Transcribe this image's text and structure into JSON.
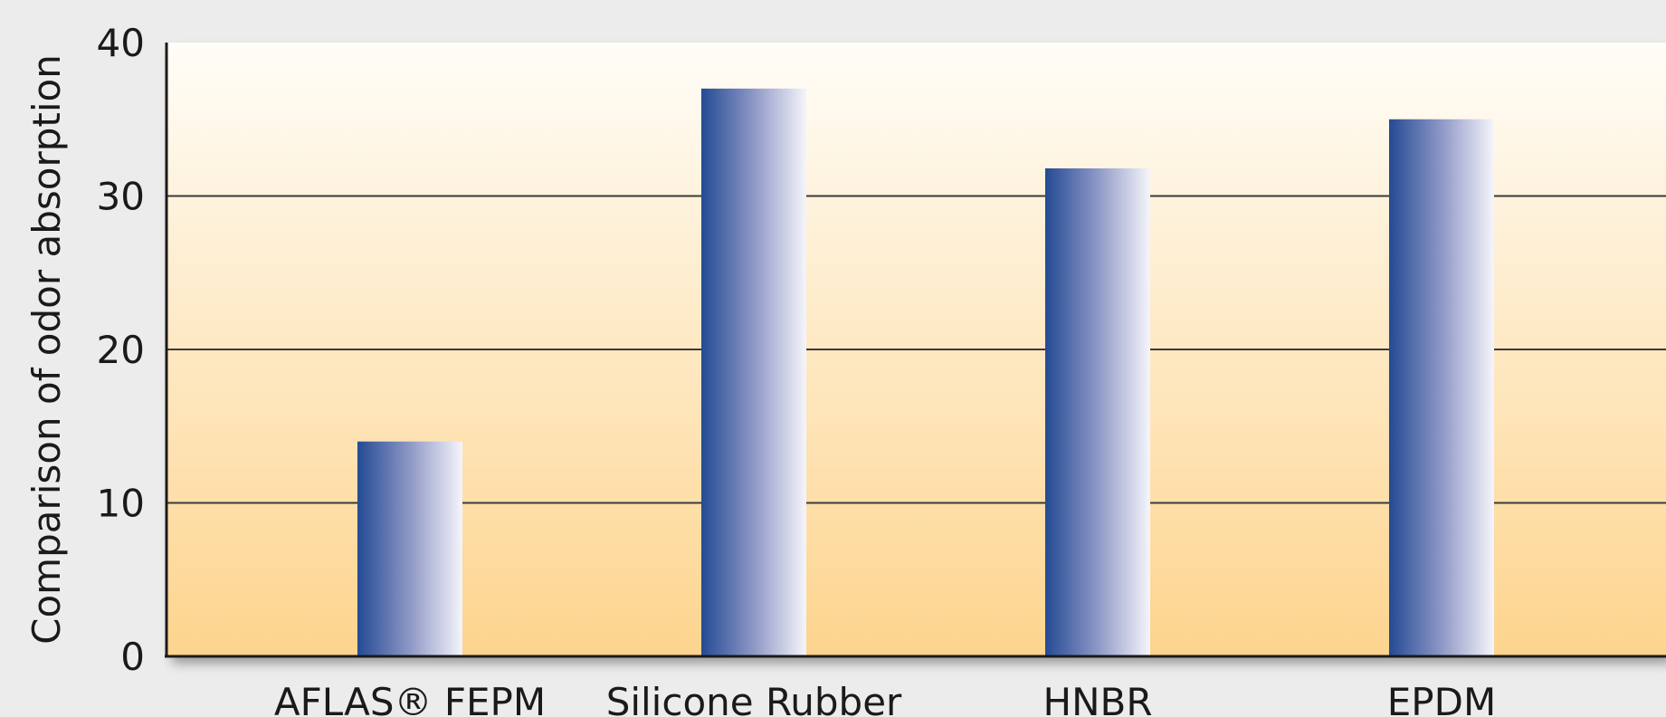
{
  "chart_data": {
    "type": "bar",
    "title": "",
    "xlabel": "",
    "ylabel": "Comparison of odor absorption",
    "categories": [
      "AFLAS® FEPM",
      "Silicone Rubber",
      "HNBR",
      "EPDM"
    ],
    "values": [
      14,
      37,
      31.8,
      35
    ],
    "ylim": [
      0,
      40
    ],
    "yticks": [
      0,
      10,
      20,
      30,
      40
    ],
    "grid": true,
    "legend": "none",
    "colors": {
      "plot_top": "#fffdf8",
      "plot_bottom": "#fdd48e",
      "bar_dark": "#244a94",
      "bar_mid": "#8e98c6",
      "bar_light": "#f5f5fb",
      "axis": "#1a1a1a",
      "grid": "#3a3a3a",
      "background": "#ececec"
    }
  }
}
